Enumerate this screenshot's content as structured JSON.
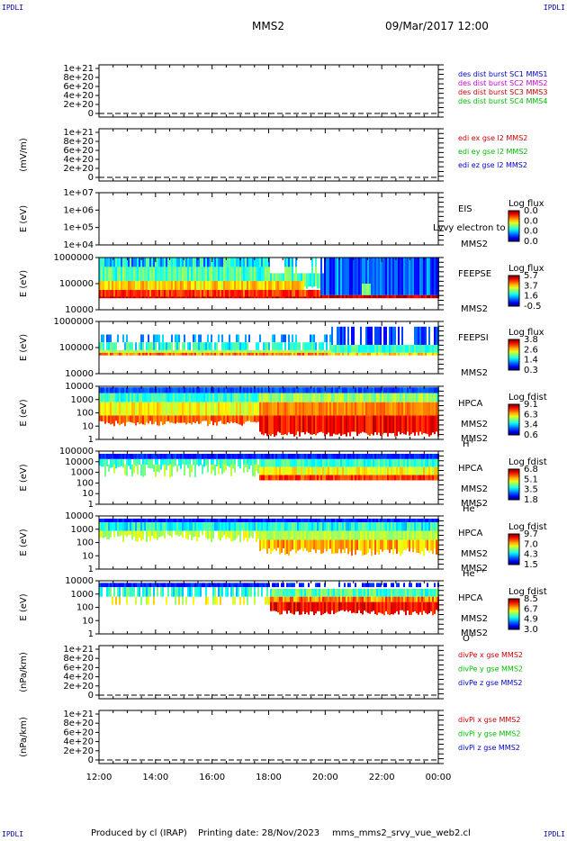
{
  "header": {
    "corner_label": "IPDLI",
    "spacecraft": "MMS2",
    "datetime": "09/Mar/2017 12:00"
  },
  "footer": {
    "produced_by": "Produced by cl (IRAP)",
    "printing_date": "Printing date: 28/Nov/2023",
    "script": "mms_mms2_srvy_vue_web2.cl"
  },
  "colors": {
    "blue": "#0000cc",
    "magenta": "#cc00cc",
    "red": "#cc0000",
    "green": "#00bb00",
    "background": "#ffffff"
  },
  "chart_data": [
    {
      "type": "line",
      "ylabel": "",
      "yticks": [
        "1e+21",
        "8e+20",
        "6e+20",
        "4e+20",
        "2e+20",
        "0"
      ],
      "legend": [
        {
          "text": "des dist burst SC1 MMS1",
          "color": "blue"
        },
        {
          "text": "des dist burst SC2 MMS2",
          "color": "magenta"
        },
        {
          "text": "des dist burst SC3 MMS3",
          "color": "red"
        },
        {
          "text": "des dist burst SC4 MMS4",
          "color": "green"
        }
      ]
    },
    {
      "type": "line",
      "ylabel": "(mV/m)",
      "yticks": [
        "1e+21",
        "8e+20",
        "6e+20",
        "4e+20",
        "2e+20",
        "0"
      ],
      "legend": [
        {
          "text": "edi ex gse l2 MMS2",
          "color": "red"
        },
        {
          "text": "edi ey gse l2 MMS2",
          "color": "green"
        },
        {
          "text": "edi ez gse l2 MMS2",
          "color": "blue"
        }
      ]
    },
    {
      "type": "heatmap",
      "ylabel": "E (eV)",
      "yticks": [
        "1e+07",
        "1e+06",
        "1e+05",
        "1e+04"
      ],
      "instrument": "EIS",
      "overlay": "Lvvy electron to",
      "spacecraft": "MMS2",
      "colorbar_title": "Log flux",
      "colorbar_ticks": [
        "0.0",
        "0.0",
        "0.0",
        "0.0"
      ],
      "empty": true
    },
    {
      "type": "heatmap",
      "ylabel": "E (eV)",
      "yticks": [
        "1000000",
        "100000",
        "10000"
      ],
      "instrument": "FEEPSE",
      "spacecraft": "MMS2",
      "colorbar_title": "Log flux",
      "colorbar_ticks": [
        "5.7",
        "3.7",
        "1.6",
        "-0.5"
      ],
      "pattern": "feepse"
    },
    {
      "type": "heatmap",
      "ylabel": "E (eV)",
      "yticks": [
        "1000000",
        "100000",
        "10000"
      ],
      "instrument": "FEEPSI",
      "spacecraft": "MMS2",
      "colorbar_title": "Log flux",
      "colorbar_ticks": [
        "3.8",
        "2.6",
        "1.4",
        "0.3"
      ],
      "pattern": "feepsi"
    },
    {
      "type": "heatmap",
      "ylabel": "E (eV)",
      "yticks": [
        "10000",
        "1000",
        "100",
        "10",
        "1"
      ],
      "instrument": "HPCA",
      "spacecraft": "MMS2",
      "species": "H",
      "charge": "+",
      "colorbar_title": "Log fdist",
      "colorbar_ticks": [
        "9.1",
        "6.3",
        "3.4",
        "0.6"
      ],
      "pattern": "hplus"
    },
    {
      "type": "heatmap",
      "ylabel": "E (eV)",
      "yticks": [
        "100000",
        "10000",
        "1000",
        "100",
        "10",
        "1"
      ],
      "instrument": "HPCA",
      "spacecraft": "MMS2",
      "species": "He",
      "charge": "+",
      "colorbar_title": "Log fdist",
      "colorbar_ticks": [
        "6.8",
        "5.1",
        "3.5",
        "1.8"
      ],
      "pattern": "heplus"
    },
    {
      "type": "heatmap",
      "ylabel": "E (eV)",
      "yticks": [
        "10000",
        "1000",
        "100",
        "10",
        "1"
      ],
      "instrument": "HPCA",
      "spacecraft": "MMS2",
      "species": "He",
      "charge": "++",
      "colorbar_title": "Log fdist",
      "colorbar_ticks": [
        "9.7",
        "7.0",
        "4.3",
        "1.5"
      ],
      "pattern": "hepp"
    },
    {
      "type": "heatmap",
      "ylabel": "E (eV)",
      "yticks": [
        "10000",
        "1000",
        "100",
        "10",
        "1"
      ],
      "instrument": "HPCA",
      "spacecraft": "MMS2",
      "species": "O",
      "charge": "+",
      "colorbar_title": "Log fdist",
      "colorbar_ticks": [
        "8.5",
        "6.7",
        "4.9",
        "3.0"
      ],
      "pattern": "oplus"
    },
    {
      "type": "line",
      "ylabel": "(nPa/km)",
      "yticks": [
        "1e+21",
        "8e+20",
        "6e+20",
        "4e+20",
        "2e+20",
        "0"
      ],
      "legend": [
        {
          "text": "divPe x gse MMS2",
          "color": "red"
        },
        {
          "text": "divPe y gse MMS2",
          "color": "green"
        },
        {
          "text": "divPe z gse MMS2",
          "color": "blue"
        }
      ]
    },
    {
      "type": "line",
      "ylabel": "(nPa/km)",
      "yticks": [
        "1e+21",
        "8e+20",
        "6e+20",
        "4e+20",
        "2e+20",
        "0"
      ],
      "legend": [
        {
          "text": "divPi x gse MMS2",
          "color": "red"
        },
        {
          "text": "divPi y gse MMS2",
          "color": "green"
        },
        {
          "text": "divPi z gse MMS2",
          "color": "blue"
        }
      ]
    }
  ],
  "xaxis": {
    "ticks": [
      "12:00",
      "14:00",
      "16:00",
      "18:00",
      "20:00",
      "22:00",
      "00:00"
    ]
  }
}
